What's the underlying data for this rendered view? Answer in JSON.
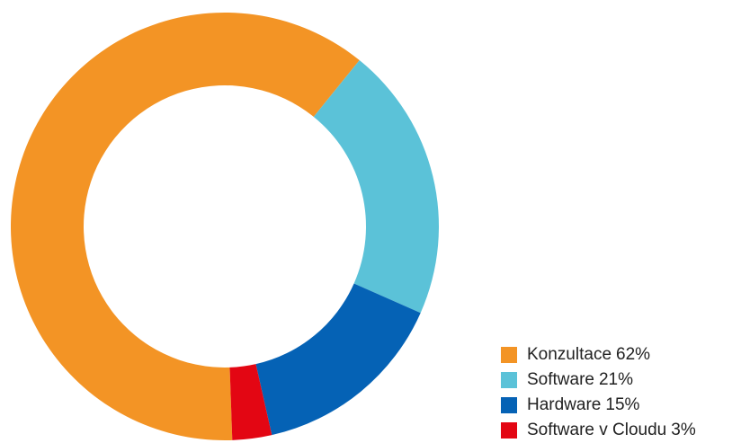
{
  "chart_data": {
    "type": "donut",
    "categories": [
      "Konzultace",
      "Software",
      "Hardware",
      "Software v Cloudu"
    ],
    "values": [
      62,
      21,
      15,
      3
    ],
    "value_labels": [
      "62%",
      "21%",
      "15%",
      "3%"
    ],
    "colors": [
      "#f39425",
      "#5bc2d8",
      "#0562b5",
      "#e30613"
    ],
    "legend": "bottom-right"
  }
}
